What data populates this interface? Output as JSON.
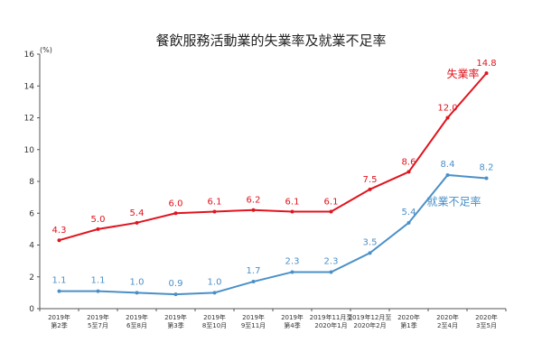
{
  "chart_data": {
    "type": "line",
    "title": "餐飲服務活動業的失業率及就業不足率",
    "unit_label": "(%)",
    "ylim": [
      0,
      16
    ],
    "yticks": [
      0,
      2,
      4,
      6,
      8,
      10,
      12,
      14,
      16
    ],
    "grid": false,
    "categories": [
      [
        "2019年",
        "第2季"
      ],
      [
        "2019年",
        "5至7月"
      ],
      [
        "2019年",
        "6至8月"
      ],
      [
        "2019年",
        "第3季"
      ],
      [
        "2019年",
        "8至10月"
      ],
      [
        "2019年",
        "9至11月"
      ],
      [
        "2019年",
        "第4季"
      ],
      [
        "2019年11月至",
        "2020年1月"
      ],
      [
        "2019年12月至",
        "2020年2月"
      ],
      [
        "2020年",
        "第1季"
      ],
      [
        "2020年",
        "2至4月"
      ],
      [
        "2020年",
        "3至5月"
      ]
    ],
    "series": [
      {
        "name": "失業率",
        "color": "#e0141e",
        "values": [
          4.3,
          5.0,
          5.4,
          6.0,
          6.1,
          6.2,
          6.1,
          6.1,
          7.5,
          8.6,
          12.0,
          14.8
        ],
        "labels": [
          "4.3",
          "5.0",
          "5.4",
          "6.0",
          "6.1",
          "6.2",
          "6.1",
          "6.1",
          "7.5",
          "8.6",
          "12.0",
          "14.8"
        ]
      },
      {
        "name": "就業不足率",
        "color": "#4a90c8",
        "values": [
          1.1,
          1.1,
          1.0,
          0.9,
          1.0,
          1.7,
          2.3,
          2.3,
          3.5,
          5.4,
          8.4,
          8.2
        ],
        "labels": [
          "1.1",
          "1.1",
          "1.0",
          "0.9",
          "1.0",
          "1.7",
          "2.3",
          "2.3",
          "3.5",
          "5.4",
          "8.4",
          "8.2"
        ]
      }
    ]
  }
}
